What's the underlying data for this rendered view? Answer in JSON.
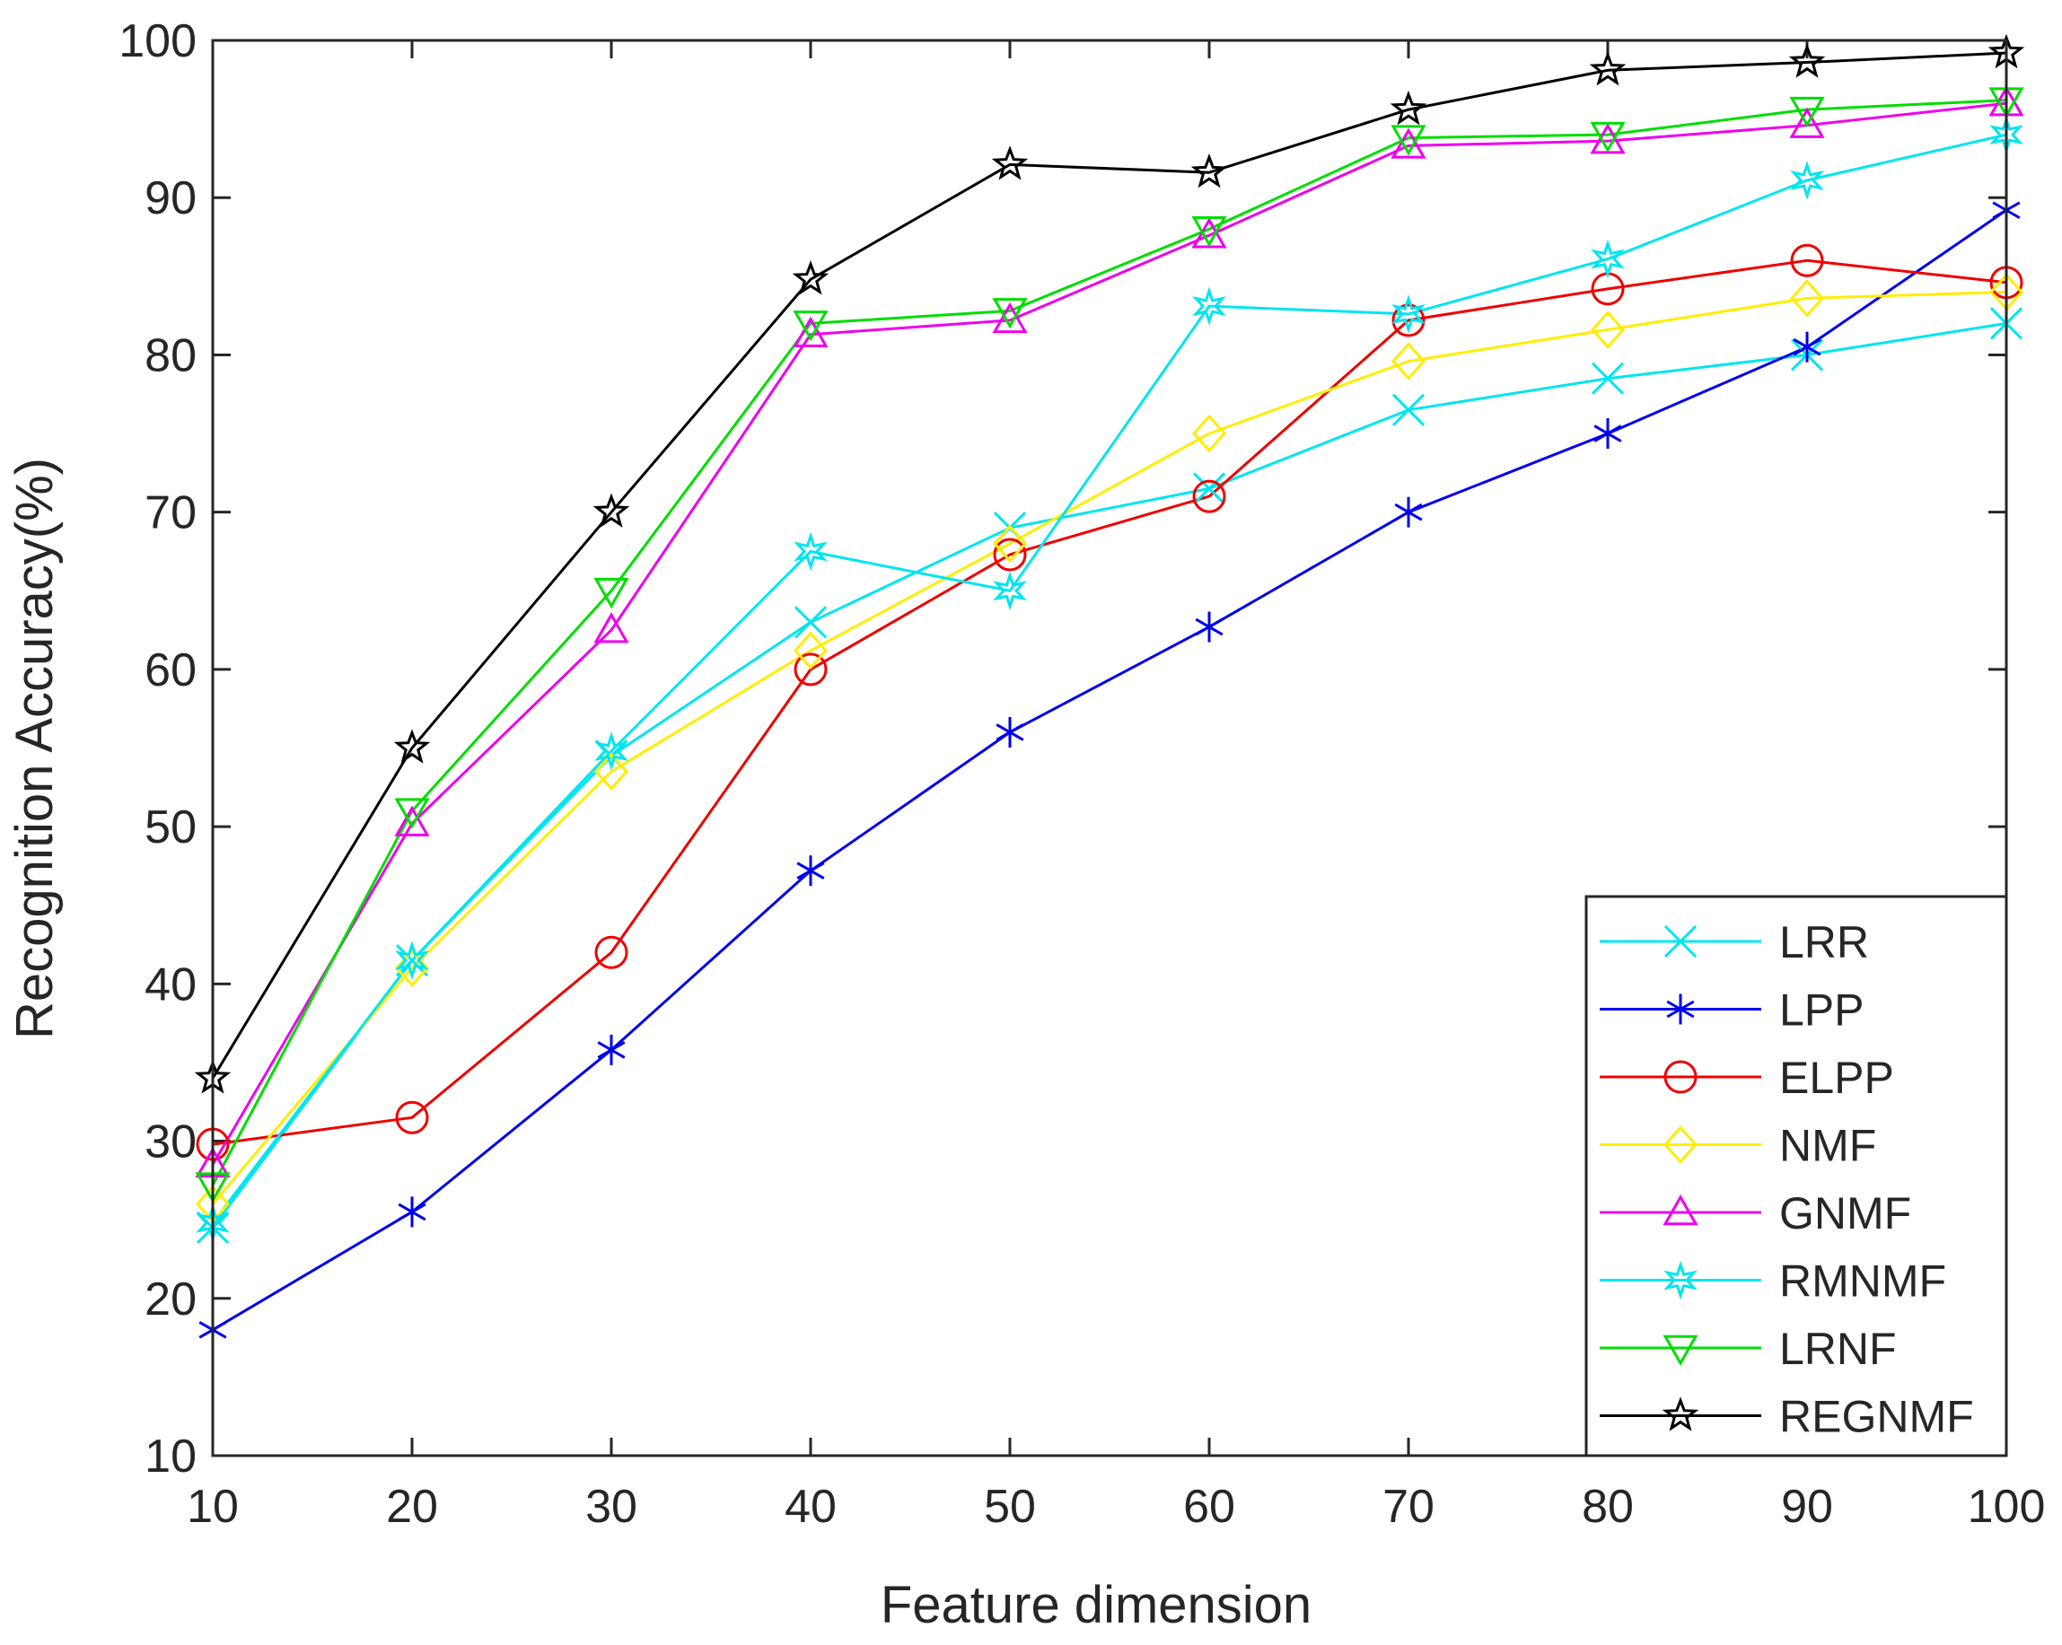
{
  "chart_data": {
    "type": "line",
    "title": "",
    "xlabel": "Feature dimension",
    "ylabel": "Recognition Accuracy(%)",
    "xlim": [
      10,
      100
    ],
    "ylim": [
      10,
      100
    ],
    "xticks": [
      10,
      20,
      30,
      40,
      50,
      60,
      70,
      80,
      90,
      100
    ],
    "yticks": [
      10,
      20,
      30,
      40,
      50,
      60,
      70,
      80,
      90,
      100
    ],
    "grid": false,
    "legend_position": "bottom-right",
    "x": [
      10,
      20,
      30,
      40,
      50,
      60,
      70,
      80,
      90,
      100
    ],
    "series": [
      {
        "name": "LRR",
        "color": "#00e5ee",
        "marker": "x",
        "values": [
          24.5,
          41.5,
          54.5,
          63,
          69,
          71.5,
          76.5,
          78.5,
          80,
          82
        ]
      },
      {
        "name": "LPP",
        "color": "#0000ee",
        "marker": "asterisk",
        "values": [
          18,
          25.5,
          35.8,
          47.2,
          56,
          62.7,
          70,
          75,
          80.5,
          89.2
        ]
      },
      {
        "name": "ELPP",
        "color": "#ee0000",
        "marker": "circle",
        "values": [
          29.8,
          31.5,
          42,
          60,
          67.3,
          71,
          82.2,
          84.2,
          86,
          84.6
        ]
      },
      {
        "name": "NMF",
        "color": "#ffee00",
        "marker": "diamond",
        "values": [
          26,
          41,
          53.5,
          61.2,
          68,
          75,
          79.6,
          81.6,
          83.6,
          84
        ]
      },
      {
        "name": "GNMF",
        "color": "#ee00ee",
        "marker": "triangle-up",
        "values": [
          28.5,
          50.2,
          62.5,
          81.3,
          82.2,
          87.6,
          93.3,
          93.6,
          94.6,
          96
        ]
      },
      {
        "name": "RMNMF",
        "color": "#00e5ee",
        "marker": "hexagram",
        "values": [
          24.8,
          41.5,
          54.8,
          67.5,
          65,
          83.1,
          82.6,
          86.1,
          91.1,
          94
        ]
      },
      {
        "name": "LRNF",
        "color": "#00dd00",
        "marker": "triangle-down",
        "values": [
          27.2,
          51,
          65,
          82,
          82.8,
          88,
          93.8,
          94,
          95.6,
          96.2
        ]
      },
      {
        "name": "REGNMF",
        "color": "#000000",
        "marker": "pentagram",
        "values": [
          34,
          55,
          70,
          84.8,
          92.1,
          91.6,
          95.6,
          98.1,
          98.6,
          99.2
        ]
      }
    ]
  }
}
